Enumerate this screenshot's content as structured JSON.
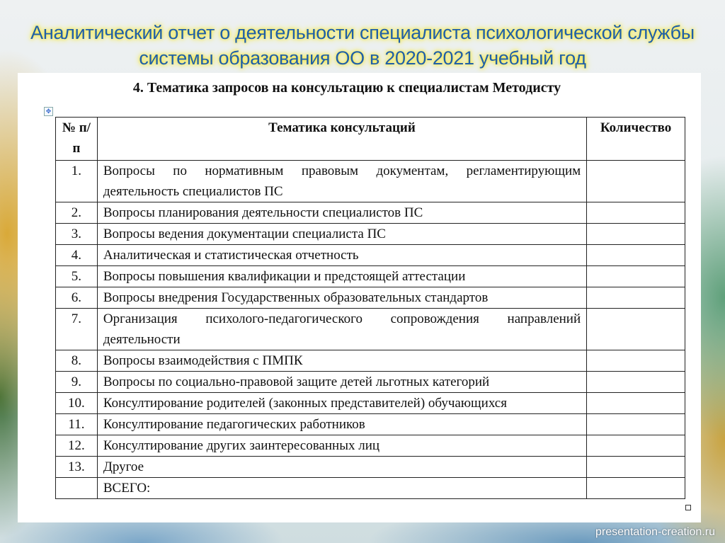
{
  "slide_title_line1": "Аналитический отчет о деятельности специалиста  психологической службы",
  "slide_title_line2": "системы образования ОО в 2020-2021 учебный год",
  "document": {
    "heading": "4. Тематика запросов на консультацию к специалистам  Методисту",
    "table": {
      "headers": [
        "№ п/п",
        "Тематика консультаций",
        "Количество"
      ],
      "rows": [
        {
          "num": "1.",
          "topic": "Вопросы по нормативным правовым документам, регламентирующим деятельность  специалистов ПС",
          "qty": ""
        },
        {
          "num": "2.",
          "topic": "Вопросы планирования деятельности специалистов ПС",
          "qty": ""
        },
        {
          "num": "3.",
          "topic": "Вопросы ведения документации специалиста ПС",
          "qty": ""
        },
        {
          "num": "4.",
          "topic": "Аналитическая и статистическая отчетность",
          "qty": ""
        },
        {
          "num": "5.",
          "topic": "Вопросы повышения квалификации и предстоящей аттестации",
          "qty": ""
        },
        {
          "num": "6.",
          "topic": "Вопросы внедрения Государственных образовательных стандартов",
          "qty": ""
        },
        {
          "num": "7.",
          "topic": "Организация психолого-педагогического сопровождения  направлений деятельности",
          "qty": ""
        },
        {
          "num": "8.",
          "topic": "Вопросы взаимодействия с ПМПК",
          "qty": ""
        },
        {
          "num": "9.",
          "topic": "Вопросы по социально-правовой защите детей льготных категорий",
          "qty": ""
        },
        {
          "num": "10.",
          "topic": "Консултирование родителей (законных представителей) обучающихся",
          "qty": ""
        },
        {
          "num": "11.",
          "topic": "Консултирование педагогических работников",
          "qty": ""
        },
        {
          "num": "12.",
          "topic": "Консултирование других заинтересованных лиц",
          "qty": ""
        },
        {
          "num": "13.",
          "topic": "Другое",
          "qty": ""
        }
      ],
      "total_label": "ВСЕГО:",
      "total_value": ""
    }
  },
  "footer": "presentation-creation.ru",
  "colors": {
    "title": "#1f5fa8",
    "title_glow": "#f4e94a"
  }
}
